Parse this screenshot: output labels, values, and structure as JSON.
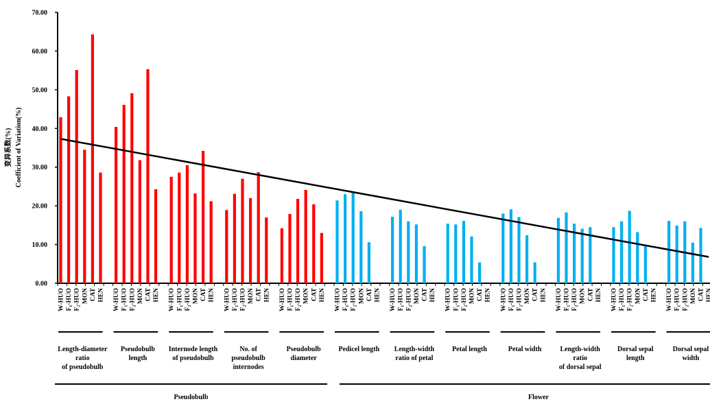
{
  "chart_data": {
    "type": "bar",
    "ylabel_cn": "变异系数(%)",
    "ylabel": "Coefficient of Variation(%)",
    "ylim": [
      0,
      70
    ],
    "yticks": [
      "0.00",
      "10.00",
      "20.00",
      "30.00",
      "40.00",
      "50.00",
      "60.00",
      "70.00"
    ],
    "population_labels": [
      "W-HUO",
      "F₁-HUO",
      "F₂-HUO",
      "MON",
      "CAT",
      "HEN"
    ],
    "colors": {
      "pseudobulb": "#ff0000",
      "flower": "#00b0f0",
      "trend": "#000000"
    },
    "trait_groups": [
      {
        "label": "Length-diameter ratio of pseudobulb",
        "lines": [
          "Length-diameter",
          "ratio",
          "of pseudobulb"
        ],
        "organ": "pseudobulb",
        "values": [
          42.9,
          48.3,
          55.1,
          34.5,
          64.3,
          28.6
        ]
      },
      {
        "label": "Pseudobulb length",
        "lines": [
          "Pseudobulb",
          "length"
        ],
        "organ": "pseudobulb",
        "values": [
          40.4,
          46.1,
          49.1,
          31.8,
          55.3,
          24.3
        ]
      },
      {
        "label": "Internode length of pseudobulb",
        "lines": [
          "Internode length",
          "of pseudobulb"
        ],
        "organ": "pseudobulb",
        "values": [
          27.5,
          28.6,
          30.5,
          23.2,
          34.2,
          21.2
        ]
      },
      {
        "label": "No. of pseudobulb internodes",
        "lines": [
          "No. of",
          "pseudobulb",
          "internodes"
        ],
        "organ": "pseudobulb",
        "values": [
          18.9,
          23.1,
          27.0,
          22.0,
          28.7,
          17.0
        ]
      },
      {
        "label": "Pseudobulb diameter",
        "lines": [
          "Pseudobulb",
          "diameter"
        ],
        "organ": "pseudobulb",
        "values": [
          14.2,
          17.9,
          21.8,
          24.1,
          20.4,
          13.0
        ]
      },
      {
        "label": "Pedicel length",
        "lines": [
          "Pedicel length"
        ],
        "organ": "flower",
        "values": [
          21.4,
          23.0,
          23.5,
          18.6,
          10.6,
          null
        ]
      },
      {
        "label": "Length-width ratio of petal",
        "lines": [
          "Length-width",
          "ratio of petal"
        ],
        "organ": "flower",
        "values": [
          17.2,
          19.0,
          16.0,
          15.2,
          9.6,
          null
        ]
      },
      {
        "label": "Petal length",
        "lines": [
          "Petal length"
        ],
        "organ": "flower",
        "values": [
          15.4,
          15.2,
          16.1,
          12.1,
          5.4,
          null
        ]
      },
      {
        "label": "Petal width",
        "lines": [
          "Petal width"
        ],
        "organ": "flower",
        "values": [
          18.0,
          19.1,
          17.1,
          12.4,
          5.4,
          null
        ]
      },
      {
        "label": "Length-width ratio of dorsal sepal",
        "lines": [
          "Length-width",
          "ratio",
          "of dorsal sepal"
        ],
        "organ": "flower",
        "values": [
          16.9,
          18.3,
          15.4,
          14.1,
          14.5,
          null
        ]
      },
      {
        "label": "Dorsal sepal length",
        "lines": [
          "Dorsal sepal",
          "length"
        ],
        "organ": "flower",
        "values": [
          14.5,
          16.0,
          18.7,
          13.2,
          10.0,
          null
        ]
      },
      {
        "label": "Dorsal sepal width",
        "lines": [
          "Dorsal sepal",
          "width"
        ],
        "organ": "flower",
        "values": [
          16.1,
          14.9,
          16.0,
          10.5,
          14.3,
          null
        ]
      }
    ],
    "organ_labels": {
      "pseudobulb": "Pseudobulb",
      "flower": "Flower"
    },
    "trendline": {
      "start": 37.3,
      "end": 6.8
    },
    "grid": false,
    "legend": "none"
  }
}
